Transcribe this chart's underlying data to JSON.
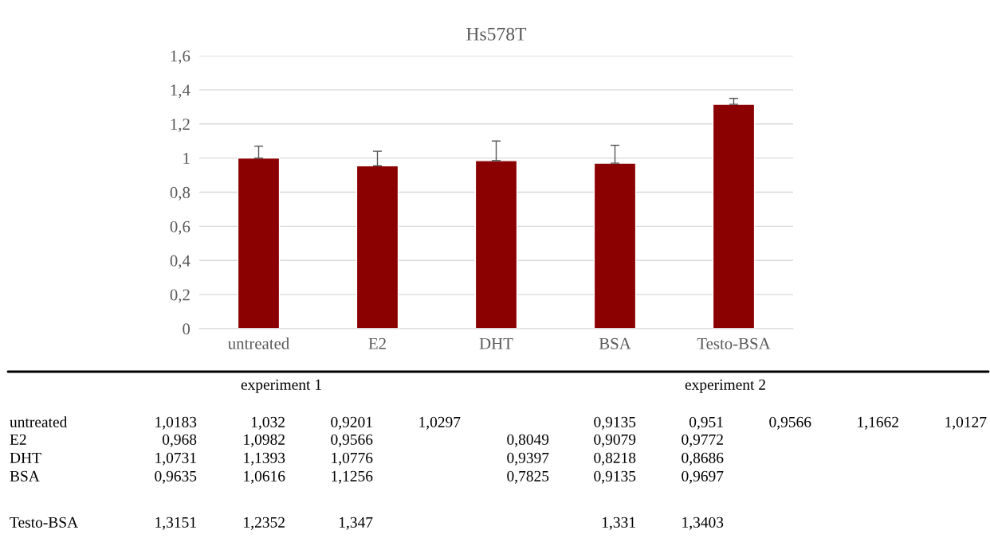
{
  "chart_data": {
    "type": "bar",
    "title": "Hs578T",
    "categories": [
      "untreated",
      "E2",
      "DHT",
      "BSA",
      "Testo-BSA"
    ],
    "values": [
      1.0,
      0.955,
      0.985,
      0.97,
      1.315
    ],
    "errors": [
      [
        1.0,
        1.07
      ],
      [
        0.955,
        1.04
      ],
      [
        0.985,
        1.1
      ],
      [
        0.97,
        1.075
      ],
      [
        1.315,
        1.35
      ]
    ],
    "color": "#8b0000",
    "ylim": [
      0,
      1.6
    ],
    "yticks": [
      0,
      {
        "value": 0.2,
        "label": "0,2"
      },
      {
        "value": 0.4,
        "label": "0,4"
      },
      {
        "value": 0.6,
        "label": "0,6"
      },
      {
        "value": 0.8,
        "label": "0,8"
      },
      1,
      {
        "value": 1.2,
        "label": "1,2"
      },
      {
        "value": 1.4,
        "label": "1,4"
      },
      {
        "value": 1.6,
        "label": "1,6"
      }
    ],
    "grid": "y",
    "annotations": [
      "experiment 1",
      "experiment 2",
      "untreated",
      "1,0183",
      "1,032",
      "0,9201",
      "1,0297",
      "0,9135",
      "0,951",
      "0,9566",
      "1,1662",
      "1,0127",
      "E2",
      "0,968",
      "1,0982",
      "0,9566",
      "0,8049",
      "0,9079",
      "0,9772",
      "DHT",
      "1,0731",
      "1,1393",
      "1,0776",
      "0,9397",
      "0,8218",
      "0,8686",
      "BSA",
      "0,9635",
      "1,0616",
      "1,1256",
      "0,7825",
      "0,9135",
      "0,9697",
      "Testo-BSA",
      "1,3151",
      "1,2352",
      "1,347",
      "1,331",
      "1,3403"
    ]
  }
}
